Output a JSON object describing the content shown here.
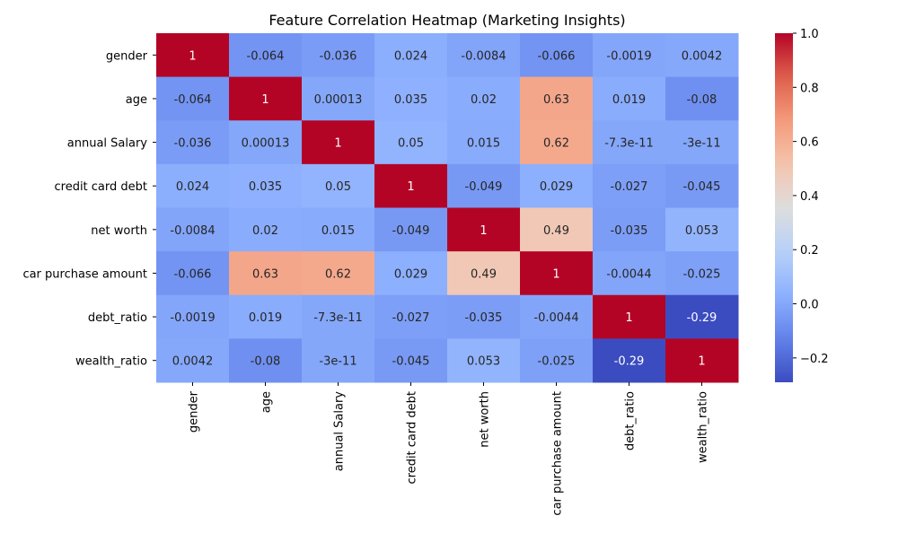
{
  "chart_data": {
    "type": "heatmap",
    "title": "Feature Correlation Heatmap (Marketing Insights)",
    "xlabel": "",
    "ylabel": "",
    "colormap": "coolwarm",
    "categories": [
      "gender",
      "age",
      "annual Salary",
      "credit card debt",
      "net worth",
      "car purchase amount",
      "debt_ratio",
      "wealth_ratio"
    ],
    "values": [
      [
        1,
        -0.064,
        -0.036,
        0.024,
        -0.0084,
        -0.066,
        -0.0019,
        0.0042
      ],
      [
        -0.064,
        1,
        0.00013,
        0.035,
        0.02,
        0.63,
        0.019,
        -0.08
      ],
      [
        -0.036,
        0.00013,
        1,
        0.05,
        0.015,
        0.62,
        -7.3e-11,
        -3e-11
      ],
      [
        0.024,
        0.035,
        0.05,
        1,
        -0.049,
        0.029,
        -0.027,
        -0.045
      ],
      [
        -0.0084,
        0.02,
        0.015,
        -0.049,
        1,
        0.49,
        -0.035,
        0.053
      ],
      [
        -0.066,
        0.63,
        0.62,
        0.029,
        0.49,
        1,
        -0.0044,
        -0.025
      ],
      [
        -0.0019,
        0.019,
        -7.3e-11,
        -0.027,
        -0.035,
        -0.0044,
        1,
        -0.29
      ],
      [
        0.0042,
        -0.08,
        -3e-11,
        -0.045,
        0.053,
        -0.025,
        -0.29,
        1
      ]
    ],
    "cell_labels": [
      [
        "1",
        "-0.064",
        "-0.036",
        "0.024",
        "-0.0084",
        "-0.066",
        "-0.0019",
        "0.0042"
      ],
      [
        "-0.064",
        "1",
        "0.00013",
        "0.035",
        "0.02",
        "0.63",
        "0.019",
        "-0.08"
      ],
      [
        "-0.036",
        "0.00013",
        "1",
        "0.05",
        "0.015",
        "0.62",
        "-7.3e-11",
        "-3e-11"
      ],
      [
        "0.024",
        "0.035",
        "0.05",
        "1",
        "-0.049",
        "0.029",
        "-0.027",
        "-0.045"
      ],
      [
        "-0.0084",
        "0.02",
        "0.015",
        "-0.049",
        "1",
        "0.49",
        "-0.035",
        "0.053"
      ],
      [
        "-0.066",
        "0.63",
        "0.62",
        "0.029",
        "0.49",
        "1",
        "-0.0044",
        "-0.025"
      ],
      [
        "-0.0019",
        "0.019",
        "-7.3e-11",
        "-0.027",
        "-0.035",
        "-0.0044",
        "1",
        "-0.29"
      ],
      [
        "0.0042",
        "-0.08",
        "-3e-11",
        "-0.045",
        "0.053",
        "-0.025",
        "-0.29",
        "1"
      ]
    ],
    "color_range": [
      -0.29,
      1.0
    ],
    "colorbar_ticks": [
      "1.0",
      "0.8",
      "0.6",
      "0.4",
      "0.2",
      "0.0",
      "−0.2"
    ],
    "colorbar_tick_values": [
      1.0,
      0.8,
      0.6,
      0.4,
      0.2,
      0.0,
      -0.2
    ],
    "grid": false
  }
}
